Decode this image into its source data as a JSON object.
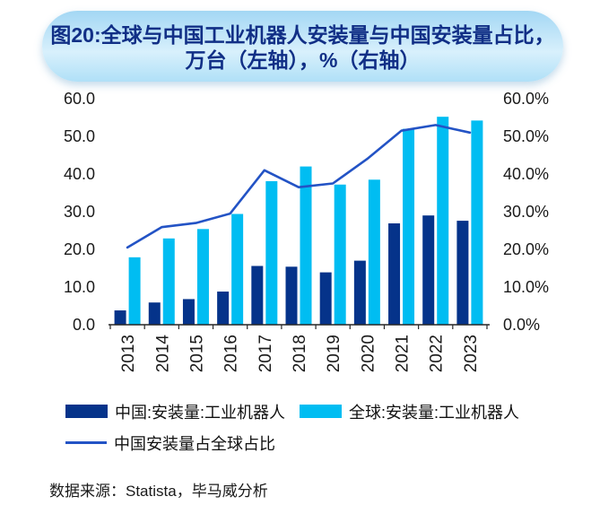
{
  "banner": {
    "title_line1": "图20:全球与中国工业机器人安装量与中国安装量占比，",
    "title_line2": "万台（左轴），%（右轴）",
    "text_color": "#112f86"
  },
  "chart_data": {
    "type": "bar",
    "title": "图20:全球与中国工业机器人安装量与中国安装量占比，万台（左轴），%（右轴）",
    "categories": [
      "2013",
      "2014",
      "2015",
      "2016",
      "2017",
      "2018",
      "2019",
      "2020",
      "2021",
      "2022",
      "2023"
    ],
    "series": [
      {
        "name": "中国:安装量:工业机器人",
        "type": "bar",
        "axis": "left",
        "color": "#05338a",
        "values": [
          3.8,
          5.9,
          6.8,
          8.8,
          15.6,
          15.4,
          13.9,
          17.0,
          26.9,
          29.0,
          27.6
        ]
      },
      {
        "name": "全球:安装量:工业机器人",
        "type": "bar",
        "axis": "left",
        "color": "#00bdf2",
        "values": [
          17.9,
          22.9,
          25.4,
          29.4,
          38.1,
          42.0,
          37.2,
          38.5,
          52.0,
          55.2,
          54.2
        ]
      },
      {
        "name": "中国安装量占全球占比",
        "type": "line",
        "axis": "right",
        "color": "#2353c5",
        "values": [
          20.5,
          25.9,
          27.0,
          29.5,
          41.0,
          36.5,
          37.5,
          44.0,
          51.5,
          53.0,
          51.0
        ]
      }
    ],
    "left_axis": {
      "min": 0,
      "max": 60,
      "step": 10,
      "tick_labels": [
        "0.0",
        "10.0",
        "20.0",
        "30.0",
        "40.0",
        "50.0",
        "60.0"
      ]
    },
    "right_axis": {
      "min": 0,
      "max": 60,
      "step": 10,
      "tick_labels": [
        "0.0%",
        "10.0%",
        "20.0%",
        "30.0%",
        "40.0%",
        "50.0%",
        "60.0%"
      ]
    },
    "grid": false,
    "legend_position": "bottom"
  },
  "source": {
    "text": "数据来源：Statista，毕马威分析"
  }
}
